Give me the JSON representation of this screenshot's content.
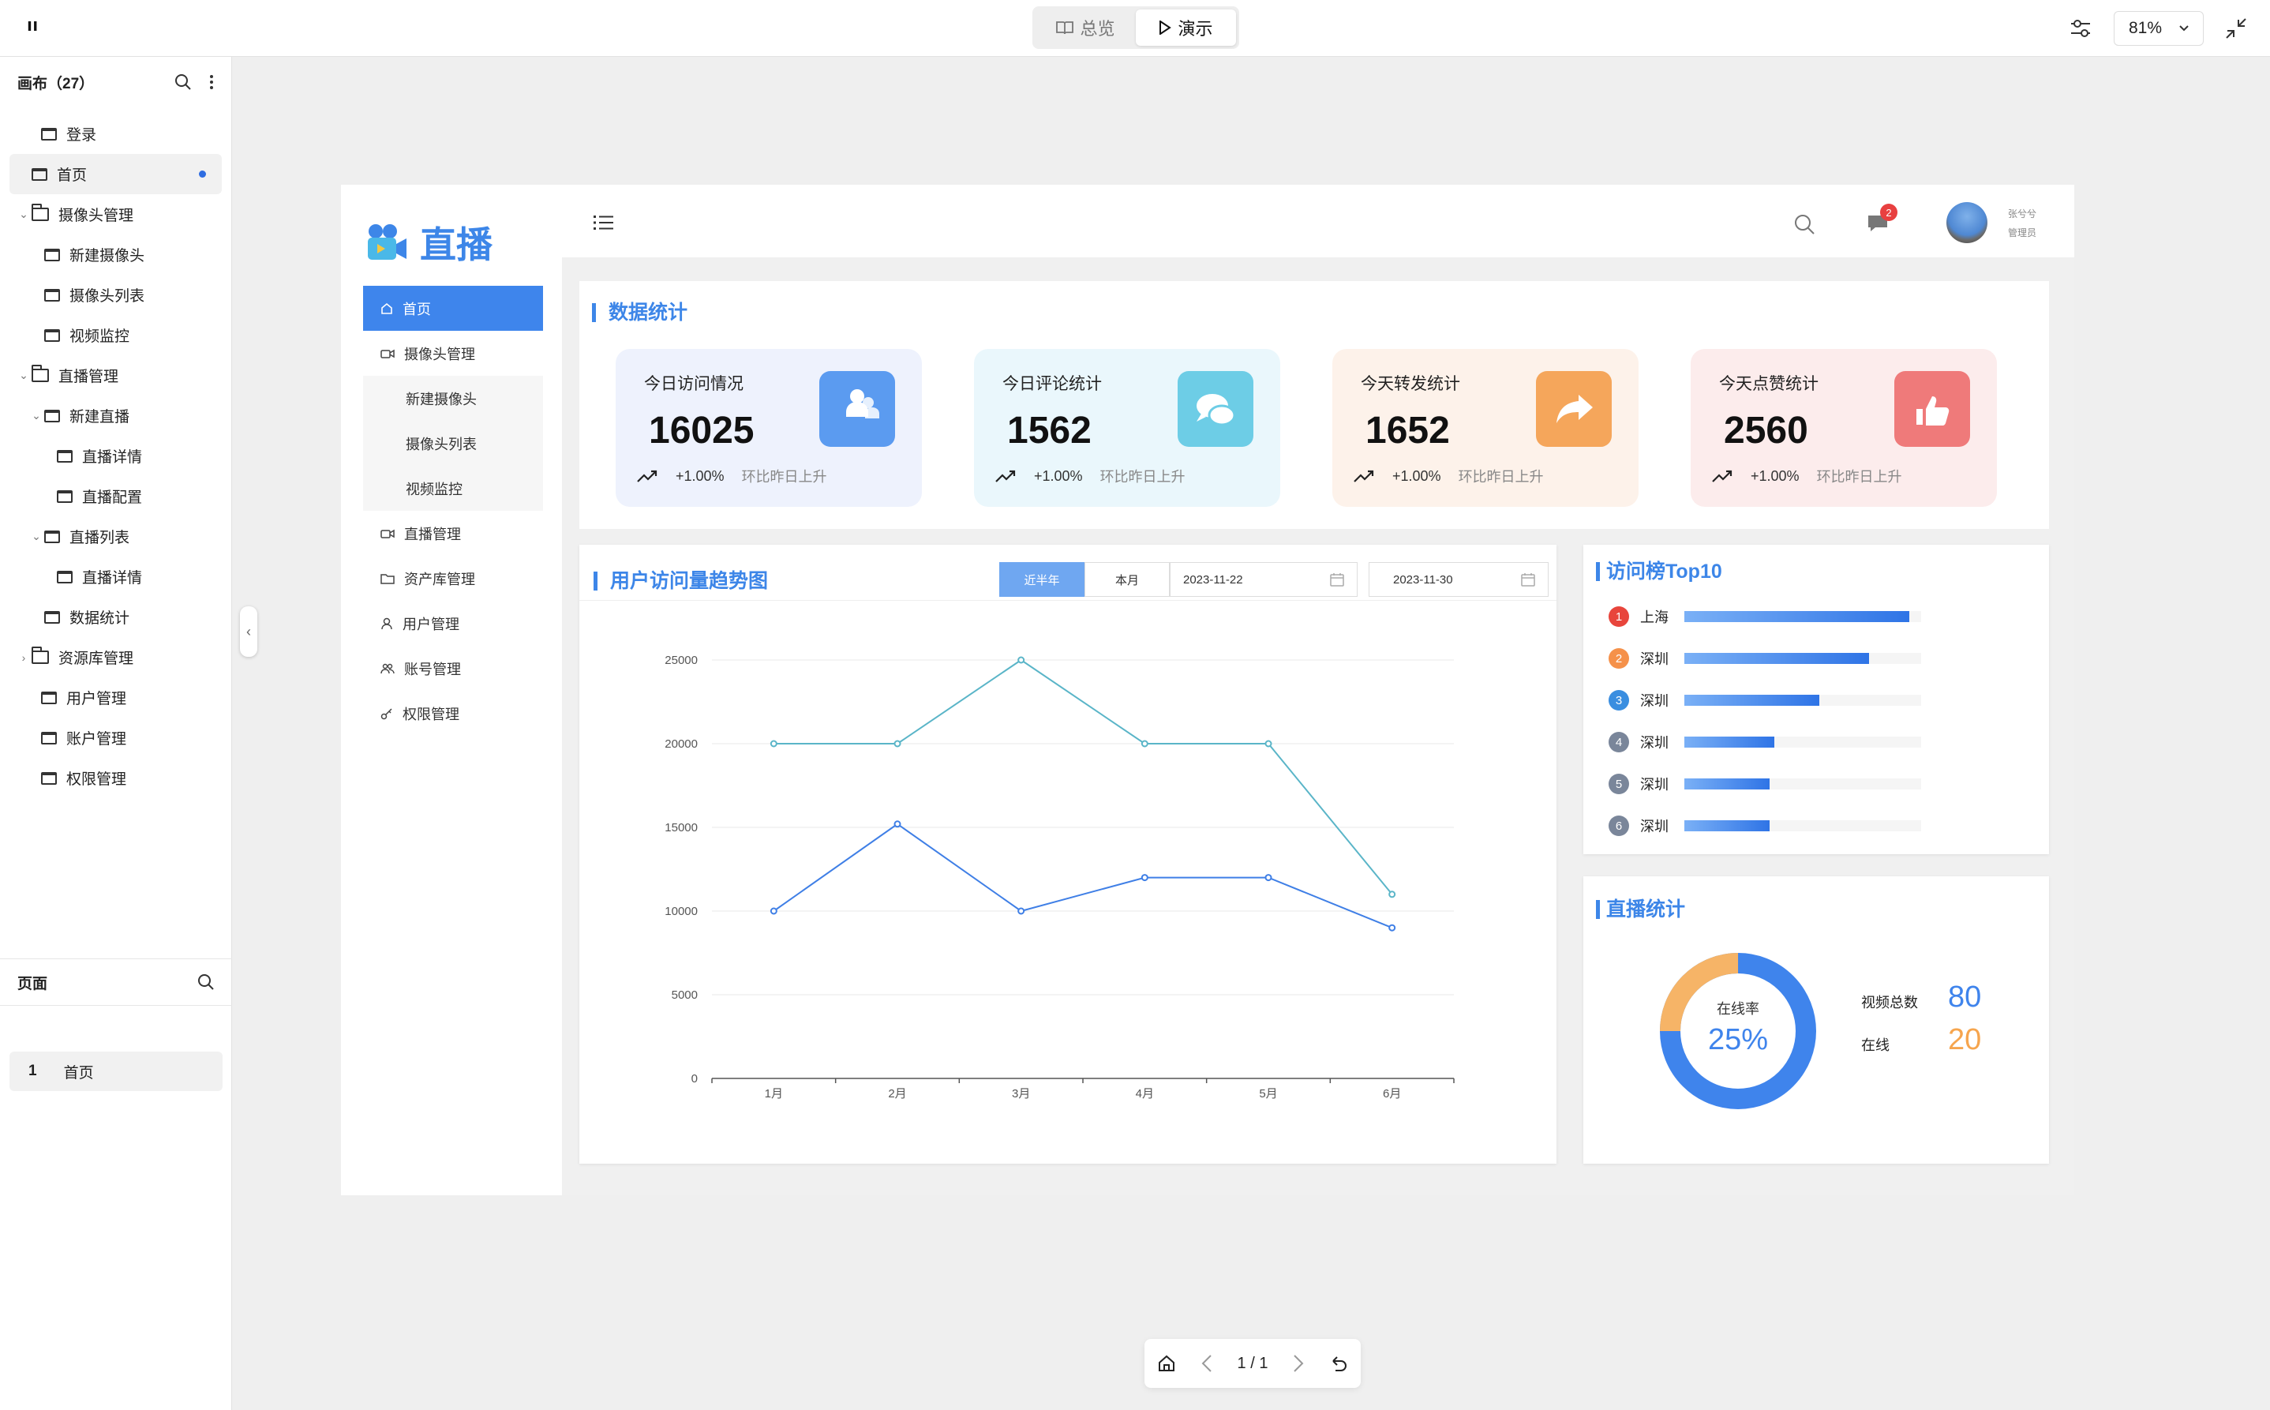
{
  "app": {
    "logo_text": "ᐦ"
  },
  "topbar": {
    "tab_overview": "总览",
    "tab_present": "演示",
    "zoom": "81%"
  },
  "left_panel": {
    "canvas_title": "画布（27）",
    "tree": [
      {
        "label": "登录",
        "type": "page",
        "depth": 0
      },
      {
        "label": "首页",
        "type": "page",
        "depth": 0,
        "selected": true
      },
      {
        "label": "摄像头管理",
        "type": "folder",
        "depth": 0,
        "expanded": true
      },
      {
        "label": "新建摄像头",
        "type": "page",
        "depth": 1
      },
      {
        "label": "摄像头列表",
        "type": "page",
        "depth": 1
      },
      {
        "label": "视频监控",
        "type": "page",
        "depth": 1
      },
      {
        "label": "直播管理",
        "type": "folder",
        "depth": 0,
        "expanded": true
      },
      {
        "label": "新建直播",
        "type": "page",
        "depth": 1,
        "expanded": true
      },
      {
        "label": "直播详情",
        "type": "page",
        "depth": 2
      },
      {
        "label": "直播配置",
        "type": "page",
        "depth": 2
      },
      {
        "label": "直播列表",
        "type": "page",
        "depth": 1,
        "expanded": true
      },
      {
        "label": "直播详情",
        "type": "page",
        "depth": 2
      },
      {
        "label": "数据统计",
        "type": "page",
        "depth": 1
      },
      {
        "label": "资源库管理",
        "type": "folder",
        "depth": 0,
        "expanded": false
      },
      {
        "label": "用户管理",
        "type": "page",
        "depth": 0
      },
      {
        "label": "账户管理",
        "type": "page",
        "depth": 0
      },
      {
        "label": "权限管理",
        "type": "page",
        "depth": 0
      }
    ],
    "pages_title": "页面",
    "pages": [
      {
        "num": "1",
        "label": "首页"
      }
    ]
  },
  "bottombar": {
    "page_indicator": "1 / 1"
  },
  "artboard": {
    "brand": "直播",
    "menu": {
      "home": "首页",
      "camera": "摄像头管理",
      "camera_sub": [
        "新建摄像头",
        "摄像头列表",
        "视频监控"
      ],
      "live": "直播管理",
      "assets": "资产库管理",
      "users": "用户管理",
      "accounts": "账号管理",
      "perms": "权限管理"
    },
    "header": {
      "badge": "2",
      "user_name": "张兮兮",
      "user_role": "管理员"
    },
    "stats": {
      "title": "数据统计",
      "cards": [
        {
          "title": "今日访问情况",
          "value": "16025",
          "change": "+1.00%",
          "note": "环比昨日上升",
          "bg": "#eef2fd",
          "icon_bg": "#5b9bf0",
          "icon": "users-icon"
        },
        {
          "title": "今日评论统计",
          "value": "1562",
          "change": "+1.00%",
          "note": "环比昨日上升",
          "bg": "#eaf7fc",
          "icon_bg": "#6dcde6",
          "icon": "comment-icon"
        },
        {
          "title": "今天转发统计",
          "value": "1652",
          "change": "+1.00%",
          "note": "环比昨日上升",
          "bg": "#fdf2ea",
          "icon_bg": "#f5a65b",
          "icon": "share-icon"
        },
        {
          "title": "今天点赞统计",
          "value": "2560",
          "change": "+1.00%",
          "note": "环比昨日上升",
          "bg": "#fcecec",
          "icon_bg": "#ef7a7a",
          "icon": "thumbs-up-icon"
        }
      ]
    },
    "trend": {
      "title": "用户访问量趋势图",
      "range_tabs": [
        "近半年",
        "本月"
      ],
      "start_date": "2023-11-22",
      "end_date": "2023-11-30"
    },
    "top10": {
      "title": "访问榜Top10",
      "rows": [
        {
          "rank": "1",
          "city": "上海",
          "value": 1.0,
          "color": "#e8453c"
        },
        {
          "rank": "2",
          "city": "深圳",
          "value": 0.82,
          "color": "#f5914a"
        },
        {
          "rank": "3",
          "city": "深圳",
          "value": 0.6,
          "color": "#3a8ee0"
        },
        {
          "rank": "4",
          "city": "深圳",
          "value": 0.4,
          "color": "#7a869a"
        },
        {
          "rank": "5",
          "city": "深圳",
          "value": 0.38,
          "color": "#7a869a"
        },
        {
          "rank": "6",
          "city": "深圳",
          "value": 0.38,
          "color": "#7a869a"
        }
      ]
    },
    "live_stats": {
      "title": "直播统计",
      "rate_label": "在线率",
      "rate_value": "25%",
      "rate_fraction": 0.25,
      "total_label": "视频总数",
      "total_value": "80",
      "online_label": "在线",
      "online_value": "20"
    }
  },
  "chart_data": {
    "type": "line",
    "categories": [
      "1月",
      "2月",
      "3月",
      "4月",
      "5月",
      "6月"
    ],
    "series": [
      {
        "values": [
          20000,
          20000,
          25000,
          20000,
          20000,
          11000
        ],
        "color": "#5ab5c8"
      },
      {
        "values": [
          10000,
          15200,
          10000,
          12000,
          12000,
          9000
        ],
        "color": "#3f7fe6"
      }
    ],
    "yticks": [
      "0",
      "5000",
      "10000",
      "15000",
      "20000",
      "25000"
    ],
    "ylim": [
      0,
      25000
    ],
    "grid": true
  }
}
